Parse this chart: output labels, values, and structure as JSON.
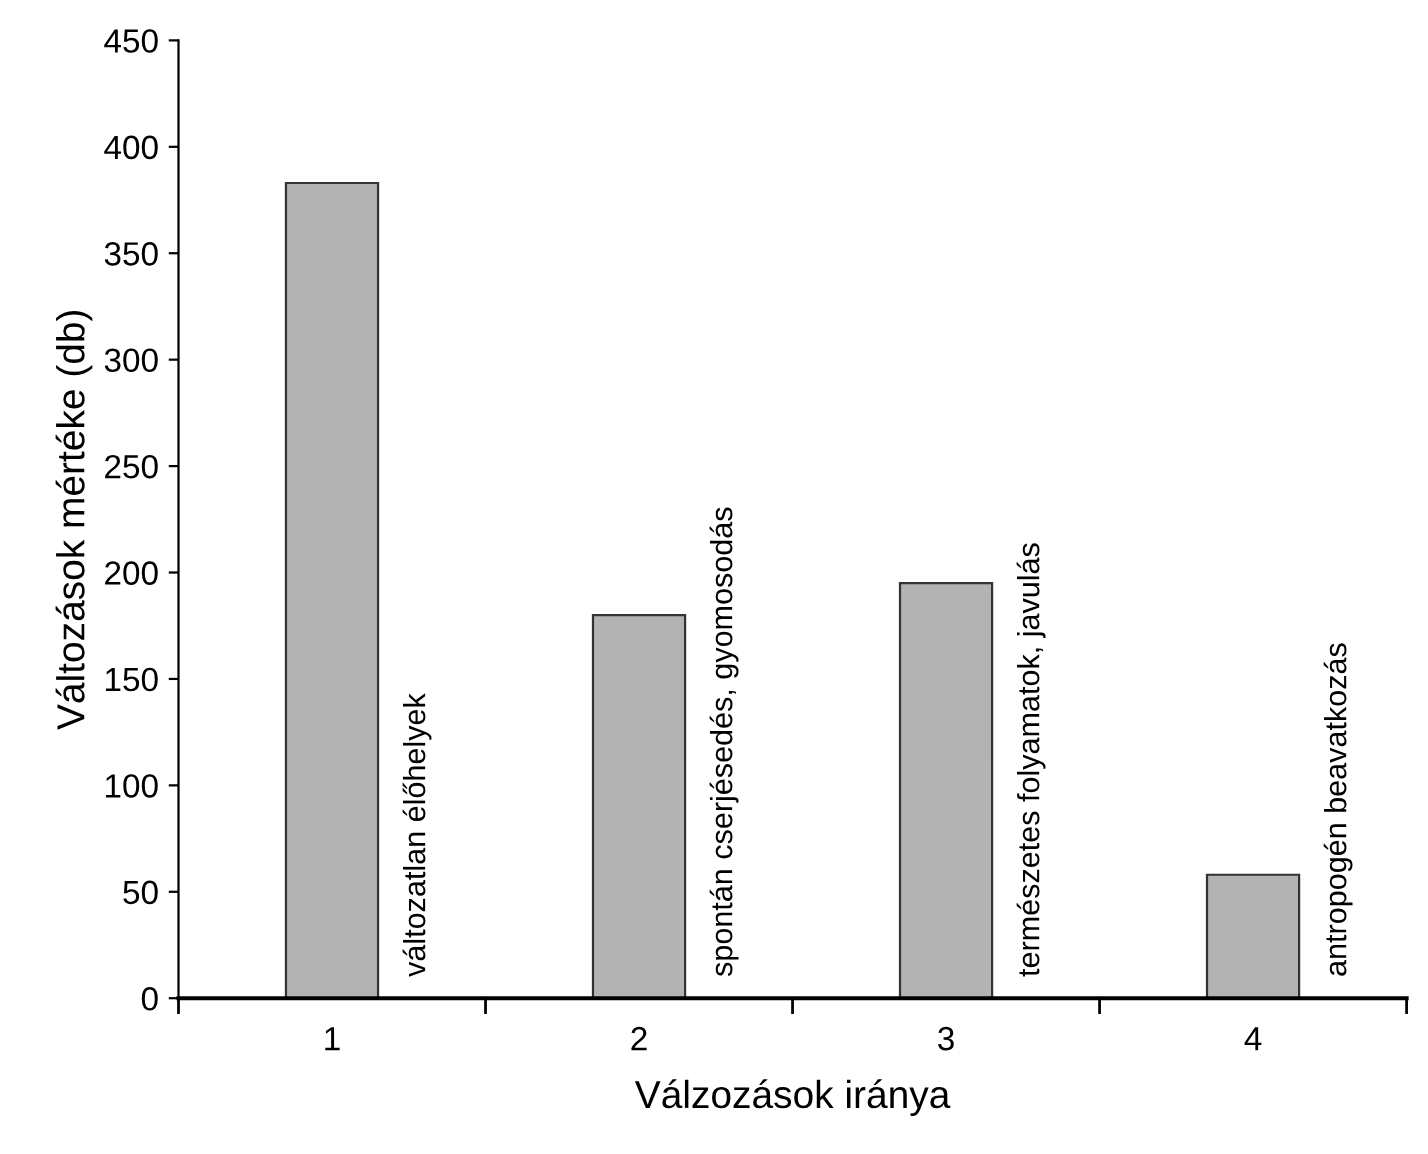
{
  "chart_data": {
    "type": "bar",
    "xlabel": "Válzozások iránya",
    "ylabel": "Változások mértéke (db)",
    "categories": [
      "1",
      "2",
      "3",
      "4"
    ],
    "values": [
      383,
      180,
      195,
      58
    ],
    "color": "#b3b3b3",
    "ylim": [
      0,
      450
    ],
    "yticks": [
      0,
      50,
      100,
      150,
      200,
      250,
      300,
      350,
      400,
      450
    ],
    "grid": false,
    "legend": false,
    "annotations": [
      {
        "text": "változatlan élőhelyek",
        "x": "1",
        "y": 0
      },
      {
        "text": "spontán cserjésedés, gyomosodás",
        "x": "2",
        "y": 0
      },
      {
        "text": "természetes folyamatok, javulás",
        "x": "3",
        "y": 0
      },
      {
        "text": "antropogén beavatkozás",
        "x": "4",
        "y": 0
      }
    ]
  }
}
